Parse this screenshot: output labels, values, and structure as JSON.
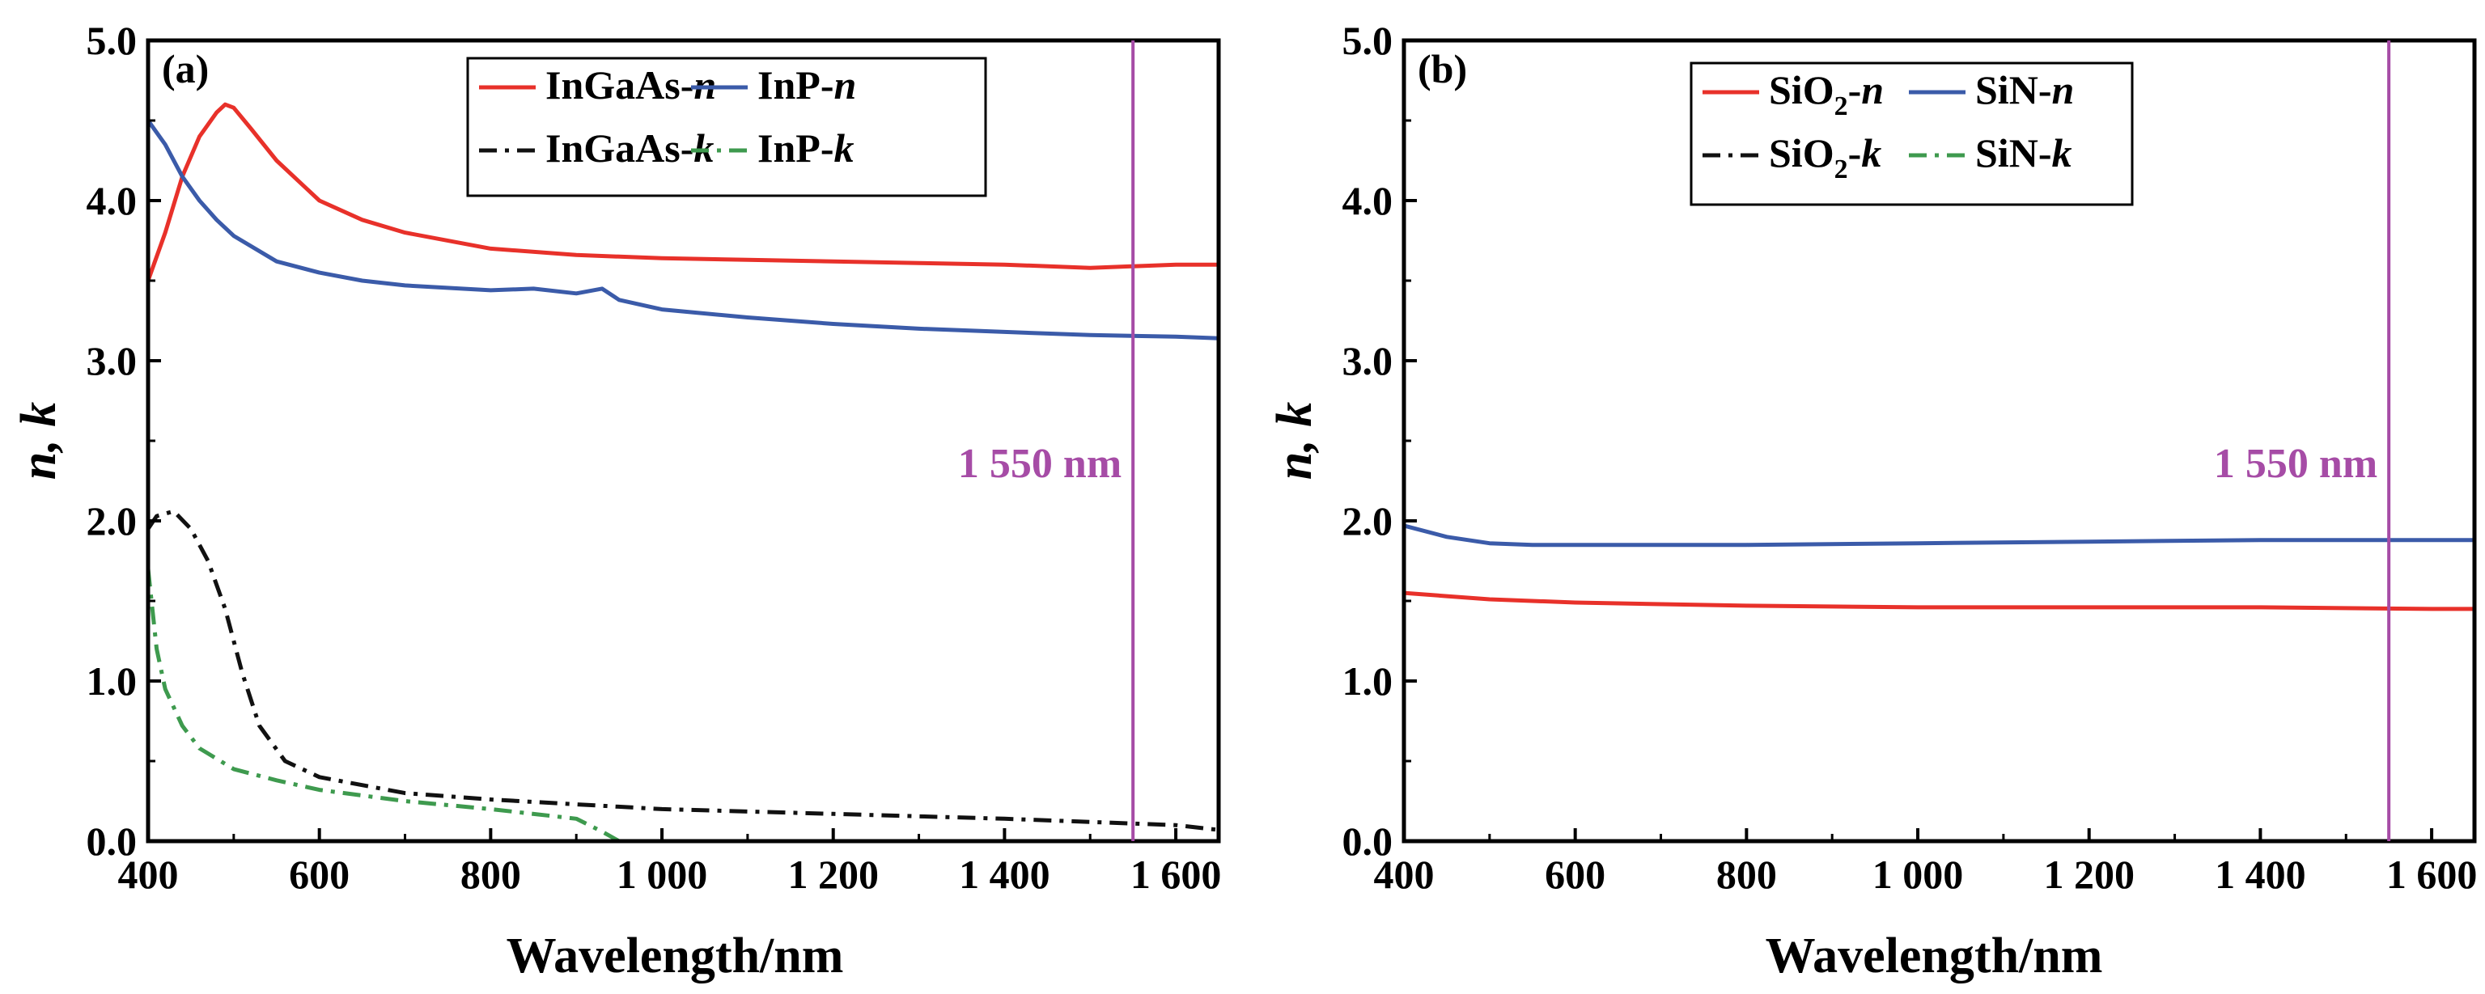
{
  "chart_data": [
    {
      "type": "line",
      "panel_label": "(a)",
      "xlabel": "Wavelength/nm",
      "ylabel": "n, k",
      "xlim": [
        400,
        1650
      ],
      "ylim": [
        0,
        5
      ],
      "xticks": [
        400,
        600,
        800,
        1000,
        1200,
        1400,
        1600
      ],
      "xtick_labels": [
        "400",
        "600",
        "800",
        "1 000",
        "1 200",
        "1 400",
        "1 600"
      ],
      "yticks": [
        0,
        1,
        2,
        3,
        4,
        5
      ],
      "ytick_labels": [
        "0.0",
        "1.0",
        "2.0",
        "3.0",
        "4.0",
        "5.0"
      ],
      "grid": false,
      "legend_position": "top-right",
      "legend_columns": 2,
      "annotation": {
        "label": "1 550 nm",
        "x": 1550,
        "color": "#a64ca6"
      },
      "series": [
        {
          "name_main": "InGaAs",
          "name_suffix": "-n",
          "color": "#e8312a",
          "style": "solid",
          "x": [
            400,
            420,
            440,
            460,
            480,
            490,
            500,
            520,
            550,
            600,
            650,
            700,
            800,
            900,
            1000,
            1100,
            1200,
            1300,
            1400,
            1500,
            1600,
            1650
          ],
          "y": [
            3.5,
            3.8,
            4.15,
            4.4,
            4.55,
            4.6,
            4.58,
            4.45,
            4.25,
            4.0,
            3.88,
            3.8,
            3.7,
            3.66,
            3.64,
            3.63,
            3.62,
            3.61,
            3.6,
            3.58,
            3.6,
            3.6
          ]
        },
        {
          "name_main": "InP",
          "name_suffix": "-n",
          "color": "#3b5ba9",
          "style": "solid",
          "x": [
            400,
            420,
            440,
            460,
            480,
            500,
            550,
            600,
            650,
            700,
            800,
            850,
            900,
            930,
            950,
            1000,
            1100,
            1200,
            1300,
            1400,
            1500,
            1600,
            1650
          ],
          "y": [
            4.5,
            4.35,
            4.15,
            4.0,
            3.88,
            3.78,
            3.62,
            3.55,
            3.5,
            3.47,
            3.44,
            3.45,
            3.42,
            3.45,
            3.38,
            3.32,
            3.27,
            3.23,
            3.2,
            3.18,
            3.16,
            3.15,
            3.14
          ]
        },
        {
          "name_main": "InGaAs",
          "name_suffix": "-k",
          "color": "#111111",
          "style": "dashdot",
          "x": [
            400,
            410,
            430,
            450,
            470,
            490,
            510,
            530,
            560,
            600,
            700,
            800,
            900,
            1000,
            1200,
            1400,
            1600,
            1650
          ],
          "y": [
            1.95,
            2.03,
            2.06,
            1.95,
            1.75,
            1.45,
            1.05,
            0.72,
            0.5,
            0.4,
            0.3,
            0.26,
            0.23,
            0.2,
            0.17,
            0.14,
            0.1,
            0.07
          ]
        },
        {
          "name_main": "InP",
          "name_suffix": "-k",
          "color": "#3e9a4e",
          "style": "dashdot",
          "x": [
            400,
            410,
            420,
            440,
            460,
            500,
            550,
            600,
            700,
            800,
            900,
            930,
            950,
            1100,
            1300,
            1500,
            1650
          ],
          "y": [
            1.7,
            1.2,
            0.95,
            0.72,
            0.58,
            0.45,
            0.38,
            0.32,
            0.25,
            0.2,
            0.14,
            0.06,
            0.0,
            0.0,
            0.0,
            0.0,
            0.0
          ]
        }
      ]
    },
    {
      "type": "line",
      "panel_label": "(b)",
      "xlabel": "Wavelength/nm",
      "ylabel": "n, k",
      "xlim": [
        400,
        1650
      ],
      "ylim": [
        0,
        5
      ],
      "xticks": [
        400,
        600,
        800,
        1000,
        1200,
        1400,
        1600
      ],
      "xtick_labels": [
        "400",
        "600",
        "800",
        "1 000",
        "1 200",
        "1 400",
        "1 600"
      ],
      "yticks": [
        0,
        1,
        2,
        3,
        4,
        5
      ],
      "ytick_labels": [
        "0.0",
        "1.0",
        "2.0",
        "3.0",
        "4.0",
        "5.0"
      ],
      "grid": false,
      "legend_position": "top-center",
      "legend_columns": 2,
      "annotation": {
        "label": "1 550 nm",
        "x": 1550,
        "color": "#a64ca6"
      },
      "series": [
        {
          "name_main": "SiO",
          "name_sub": "2",
          "name_suffix": "-n",
          "color": "#e8312a",
          "style": "solid",
          "x": [
            400,
            450,
            500,
            600,
            800,
            1000,
            1200,
            1400,
            1600,
            1650
          ],
          "y": [
            1.55,
            1.53,
            1.51,
            1.49,
            1.47,
            1.46,
            1.46,
            1.46,
            1.45,
            1.45
          ]
        },
        {
          "name_main": "SiN",
          "name_suffix": "-n",
          "color": "#3b5ba9",
          "style": "solid",
          "x": [
            400,
            450,
            500,
            550,
            600,
            800,
            1000,
            1200,
            1400,
            1600,
            1650
          ],
          "y": [
            1.97,
            1.9,
            1.86,
            1.85,
            1.85,
            1.85,
            1.86,
            1.87,
            1.88,
            1.88,
            1.88
          ]
        },
        {
          "name_main": "SiO",
          "name_sub": "2",
          "name_suffix": "-k",
          "color": "#111111",
          "style": "dashdot",
          "x": [
            400,
            1650
          ],
          "y": [
            0.0,
            0.0
          ]
        },
        {
          "name_main": "SiN",
          "name_suffix": "-k",
          "color": "#3e9a4e",
          "style": "dashdot",
          "x": [
            400,
            1650
          ],
          "y": [
            0.0,
            0.0
          ]
        }
      ]
    }
  ]
}
